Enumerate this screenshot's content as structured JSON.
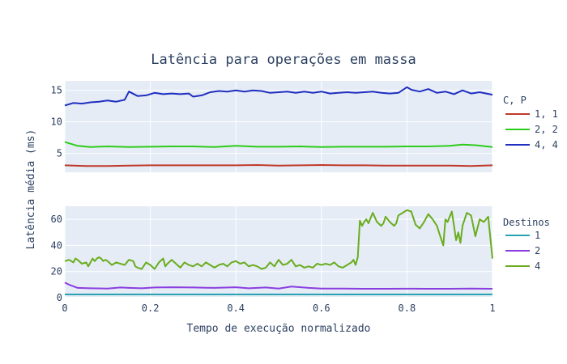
{
  "chart_data": {
    "type": "line",
    "title": "Latência para operações em massa",
    "xlabel": "Tempo de execução normalizado",
    "ylabel": "Latência média (ms)",
    "x_ticks": [
      "0",
      "0.2",
      "0.4",
      "0.6",
      "0.8",
      "1"
    ],
    "xlim": [
      0,
      1
    ],
    "grid": true,
    "panels": [
      {
        "name": "top",
        "legend_title": "C, P",
        "legend_placement": "right",
        "ylim": [
          2,
          16.5
        ],
        "y_ticks": [
          5,
          10,
          15
        ],
        "series": [
          {
            "name": "1, 1",
            "color": "#c0392b",
            "x": [
              0,
              0.05,
              0.1,
              0.15,
              0.2,
              0.25,
              0.3,
              0.35,
              0.4,
              0.45,
              0.5,
              0.55,
              0.6,
              0.65,
              0.7,
              0.75,
              0.8,
              0.85,
              0.9,
              0.95,
              1.0
            ],
            "y": [
              3.1,
              3.0,
              3.0,
              3.05,
              3.1,
              3.1,
              3.1,
              3.1,
              3.1,
              3.15,
              3.05,
              3.1,
              3.15,
              3.1,
              3.1,
              3.05,
              3.05,
              3.05,
              3.05,
              3.0,
              3.1
            ]
          },
          {
            "name": "2, 2",
            "color": "#2ecc1a",
            "x": [
              0,
              0.03,
              0.06,
              0.1,
              0.15,
              0.2,
              0.25,
              0.3,
              0.35,
              0.4,
              0.45,
              0.5,
              0.55,
              0.6,
              0.65,
              0.7,
              0.75,
              0.8,
              0.85,
              0.9,
              0.93,
              0.96,
              1.0
            ],
            "y": [
              6.8,
              6.2,
              6.0,
              6.1,
              6.0,
              6.05,
              6.1,
              6.1,
              6.0,
              6.2,
              6.05,
              6.05,
              6.1,
              6.0,
              6.05,
              6.05,
              6.05,
              6.1,
              6.1,
              6.2,
              6.4,
              6.3,
              6.0
            ]
          },
          {
            "name": "4, 4",
            "color": "#1f2fbf",
            "x": [
              0,
              0.02,
              0.04,
              0.06,
              0.08,
              0.1,
              0.12,
              0.14,
              0.15,
              0.17,
              0.19,
              0.21,
              0.23,
              0.25,
              0.27,
              0.29,
              0.3,
              0.32,
              0.34,
              0.36,
              0.38,
              0.4,
              0.42,
              0.44,
              0.46,
              0.48,
              0.5,
              0.52,
              0.54,
              0.56,
              0.58,
              0.6,
              0.62,
              0.64,
              0.66,
              0.68,
              0.7,
              0.72,
              0.74,
              0.76,
              0.78,
              0.8,
              0.81,
              0.83,
              0.85,
              0.87,
              0.89,
              0.91,
              0.93,
              0.95,
              0.97,
              1.0
            ],
            "y": [
              12.6,
              13.0,
              12.9,
              13.1,
              13.2,
              13.4,
              13.2,
              13.5,
              14.8,
              14.1,
              14.2,
              14.6,
              14.4,
              14.5,
              14.4,
              14.5,
              14.0,
              14.2,
              14.7,
              14.9,
              14.8,
              15.0,
              14.8,
              15.0,
              14.9,
              14.6,
              14.7,
              14.8,
              14.6,
              14.8,
              14.6,
              14.8,
              14.5,
              14.6,
              14.7,
              14.6,
              14.7,
              14.8,
              14.6,
              14.5,
              14.6,
              15.5,
              15.1,
              14.8,
              15.2,
              14.6,
              14.8,
              14.4,
              15.0,
              14.5,
              14.7,
              14.3
            ]
          }
        ]
      },
      {
        "name": "bottom",
        "legend_title": "Destinos",
        "legend_placement": "right",
        "ylim": [
          0,
          70
        ],
        "y_ticks": [
          0,
          20,
          40,
          60
        ],
        "series": [
          {
            "name": "1",
            "color": "#29a3b3",
            "x": [
              0,
              0.1,
              0.2,
              0.3,
              0.4,
              0.5,
              0.6,
              0.7,
              0.8,
              0.9,
              1.0
            ],
            "y": [
              2.5,
              2.5,
              2.5,
              2.5,
              2.5,
              2.5,
              2.5,
              2.5,
              2.5,
              2.5,
              2.5
            ]
          },
          {
            "name": "2",
            "color": "#8a3ee0",
            "x": [
              0,
              0.01,
              0.03,
              0.06,
              0.1,
              0.13,
              0.15,
              0.18,
              0.21,
              0.25,
              0.3,
              0.35,
              0.4,
              0.43,
              0.47,
              0.5,
              0.53,
              0.57,
              0.6,
              0.65,
              0.7,
              0.75,
              0.8,
              0.85,
              0.9,
              0.95,
              1.0
            ],
            "y": [
              11.5,
              10.0,
              7.5,
              7.2,
              7.0,
              7.8,
              7.5,
              7.2,
              7.8,
              8.0,
              7.8,
              7.5,
              8.0,
              7.2,
              7.8,
              7.0,
              8.5,
              7.5,
              7.0,
              7.0,
              6.8,
              6.8,
              6.9,
              6.8,
              6.8,
              7.0,
              6.8
            ]
          },
          {
            "name": "4",
            "color": "#6aac1e",
            "x": [
              0,
              0.01,
              0.02,
              0.025,
              0.03,
              0.04,
              0.05,
              0.055,
              0.065,
              0.07,
              0.075,
              0.08,
              0.085,
              0.09,
              0.095,
              0.1,
              0.11,
              0.12,
              0.13,
              0.14,
              0.15,
              0.16,
              0.165,
              0.17,
              0.18,
              0.19,
              0.2,
              0.21,
              0.22,
              0.23,
              0.235,
              0.24,
              0.25,
              0.26,
              0.27,
              0.28,
              0.29,
              0.3,
              0.31,
              0.32,
              0.33,
              0.34,
              0.35,
              0.36,
              0.37,
              0.38,
              0.39,
              0.4,
              0.41,
              0.42,
              0.43,
              0.44,
              0.45,
              0.46,
              0.47,
              0.48,
              0.49,
              0.5,
              0.51,
              0.52,
              0.53,
              0.54,
              0.55,
              0.56,
              0.57,
              0.58,
              0.59,
              0.6,
              0.61,
              0.62,
              0.63,
              0.64,
              0.65,
              0.66,
              0.67,
              0.675,
              0.68,
              0.685,
              0.69,
              0.695,
              0.7,
              0.705,
              0.71,
              0.72,
              0.73,
              0.74,
              0.745,
              0.75,
              0.76,
              0.77,
              0.775,
              0.78,
              0.79,
              0.8,
              0.81,
              0.82,
              0.83,
              0.84,
              0.85,
              0.86,
              0.87,
              0.875,
              0.88,
              0.885,
              0.89,
              0.895,
              0.9,
              0.905,
              0.91,
              0.915,
              0.92,
              0.925,
              0.93,
              0.935,
              0.94,
              0.95,
              0.96,
              0.97,
              0.98,
              0.99,
              1.0
            ],
            "y": [
              28,
              29,
              27,
              30,
              29,
              26,
              27,
              24,
              30,
              28,
              30,
              31,
              30,
              28,
              29,
              28,
              25,
              27,
              26,
              25,
              29,
              28,
              24,
              23,
              22,
              27,
              25,
              22,
              27,
              30,
              24,
              26,
              29,
              26,
              23,
              27,
              25,
              24,
              26,
              24,
              27,
              25,
              23,
              25,
              26,
              24,
              27,
              28,
              26,
              27,
              24,
              25,
              24,
              22,
              23,
              27,
              24,
              29,
              25,
              26,
              29,
              24,
              25,
              23,
              24,
              23,
              26,
              25,
              26,
              25,
              27,
              24,
              23,
              25,
              27,
              29,
              25,
              31,
              59,
              55,
              58,
              60,
              57,
              65,
              58,
              55,
              57,
              62,
              58,
              55,
              57,
              63,
              65,
              67,
              66,
              56,
              53,
              58,
              64,
              60,
              55,
              50,
              45,
              40,
              60,
              58,
              62,
              66,
              55,
              44,
              50,
              42,
              55,
              60,
              65,
              63,
              47,
              60,
              58,
              62,
              30
            ]
          }
        ]
      }
    ]
  }
}
